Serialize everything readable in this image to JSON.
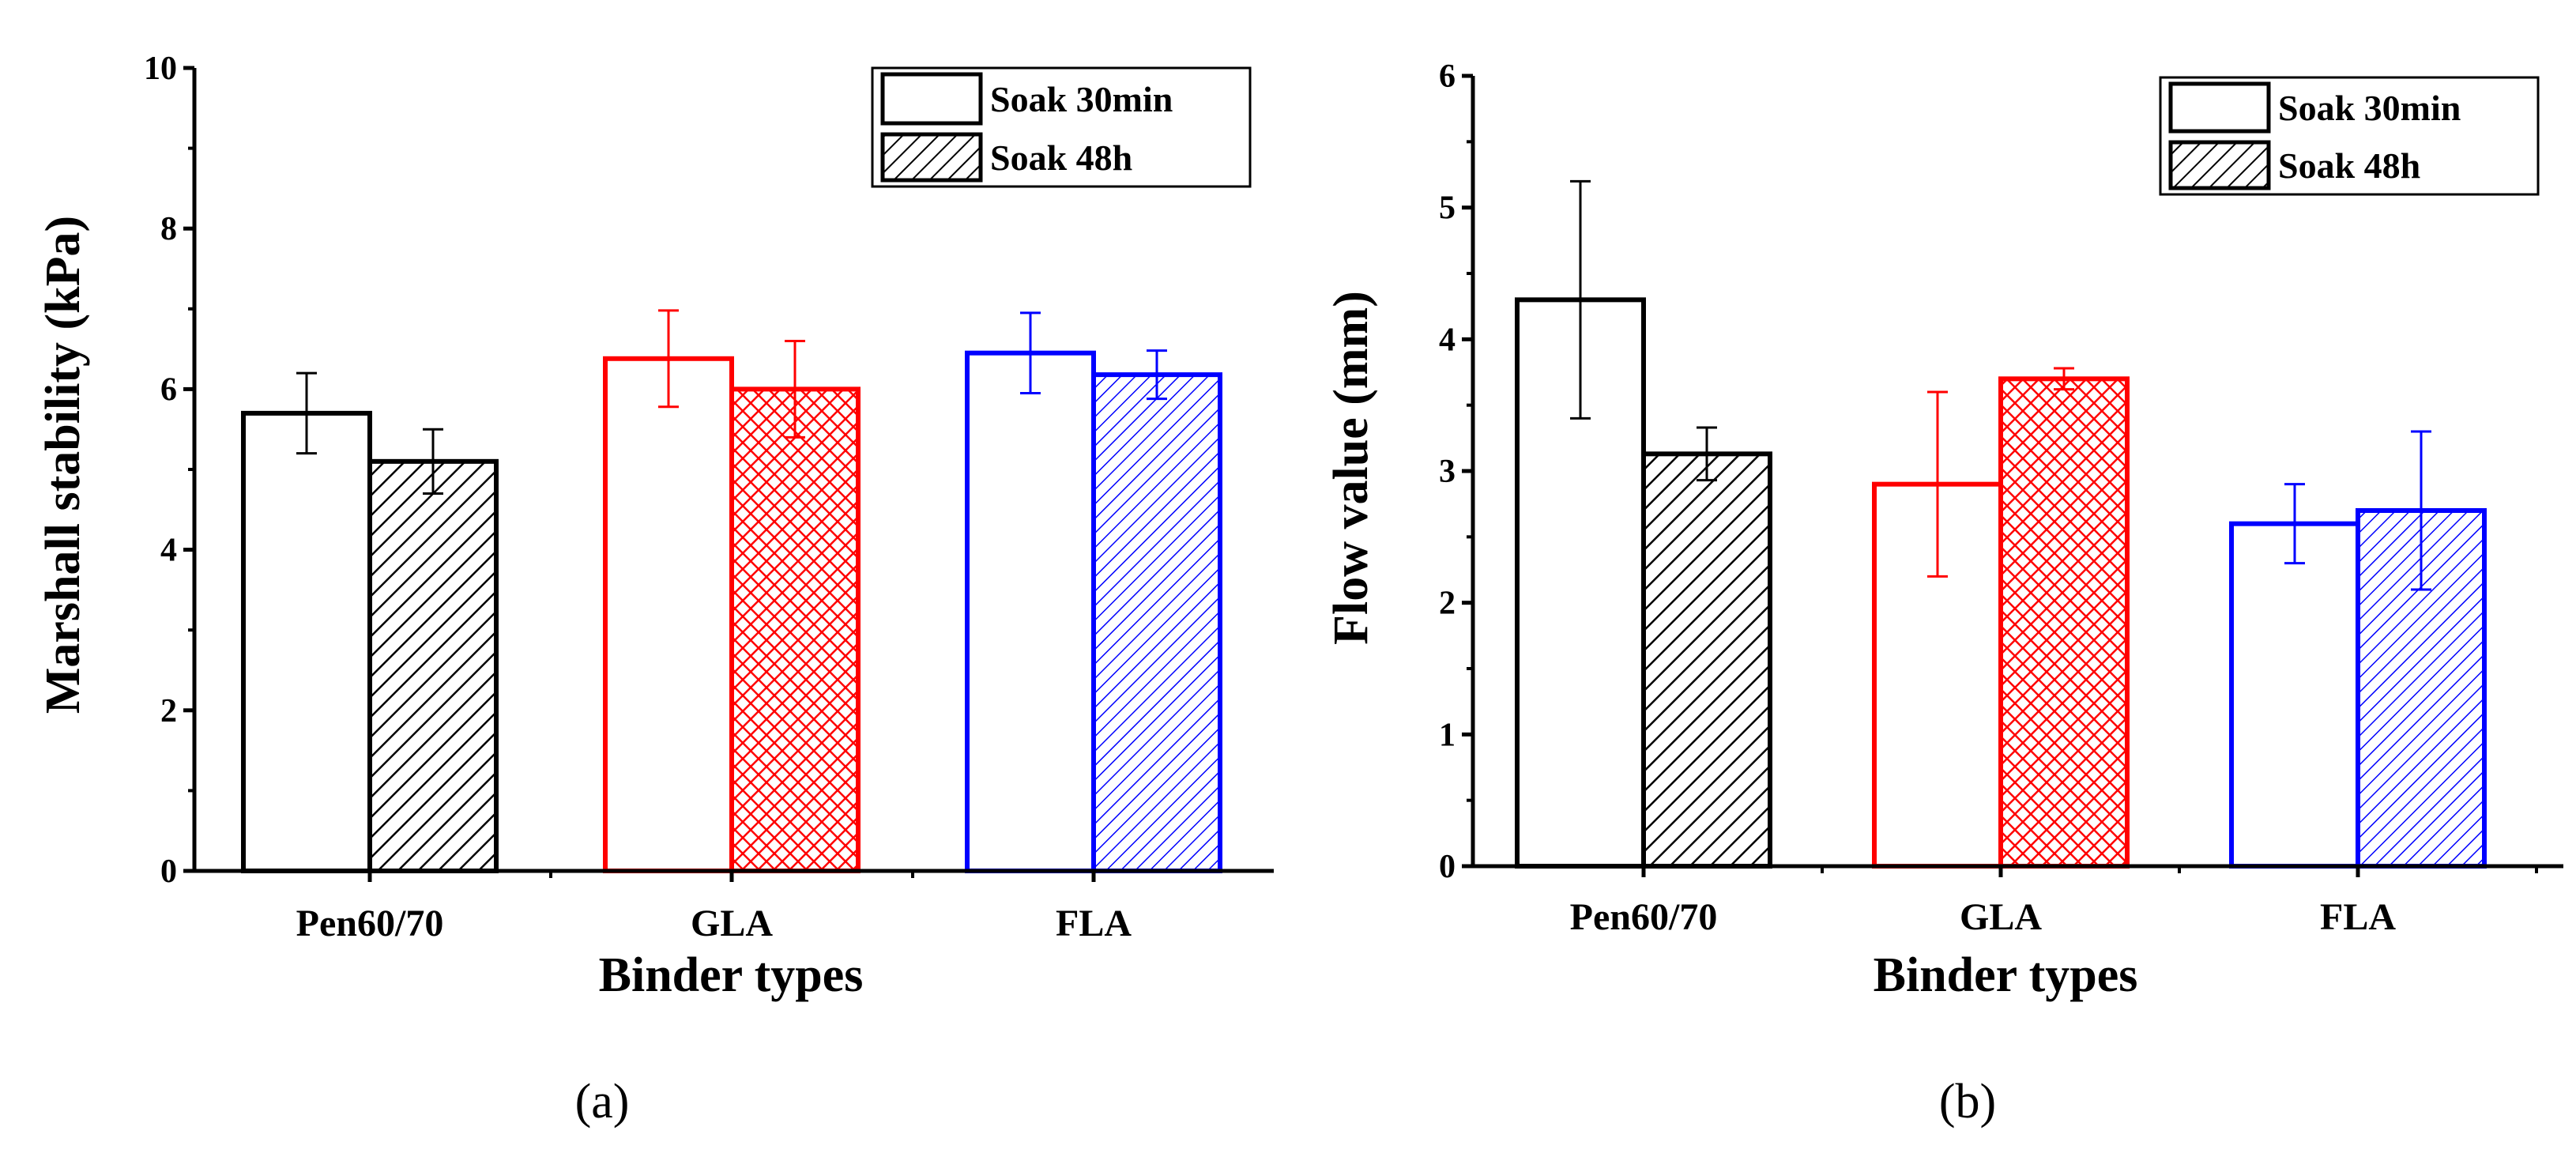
{
  "chart_data": [
    {
      "type": "bar",
      "panel_label": "(a)",
      "categories": [
        "Pen60/70",
        "GLA",
        "FLA"
      ],
      "category_colors": [
        "#000000",
        "#ff0000",
        "#0000ff"
      ],
      "xlabel": "Binder types",
      "ylabel": "Marshall stability (kPa)",
      "ylim": [
        0,
        10
      ],
      "yticks": [
        0,
        2,
        4,
        6,
        8,
        10
      ],
      "legend_position": "top-right",
      "series": [
        {
          "name": "Soak 30min",
          "pattern": "open",
          "values": [
            5.7,
            6.38,
            6.45
          ],
          "errors": [
            0.5,
            0.6,
            0.5
          ]
        },
        {
          "name": "Soak 48h",
          "pattern": "hatched",
          "values": [
            5.1,
            6.0,
            6.18
          ],
          "errors": [
            0.4,
            0.6,
            0.3
          ]
        }
      ]
    },
    {
      "type": "bar",
      "panel_label": "(b)",
      "categories": [
        "Pen60/70",
        "GLA",
        "FLA"
      ],
      "category_colors": [
        "#000000",
        "#ff0000",
        "#0000ff"
      ],
      "xlabel": "Binder types",
      "ylabel": "Flow value (mm)",
      "ylim": [
        0,
        6
      ],
      "yticks": [
        0,
        1,
        2,
        3,
        4,
        5,
        6
      ],
      "legend_position": "top-right",
      "series": [
        {
          "name": "Soak 30min",
          "pattern": "open",
          "values": [
            4.3,
            2.9,
            2.6
          ],
          "errors": [
            0.9,
            0.7,
            0.3
          ]
        },
        {
          "name": "Soak 48h",
          "pattern": "hatched",
          "values": [
            3.13,
            3.7,
            2.7
          ],
          "errors": [
            0.2,
            0.08,
            0.6
          ]
        }
      ]
    }
  ]
}
